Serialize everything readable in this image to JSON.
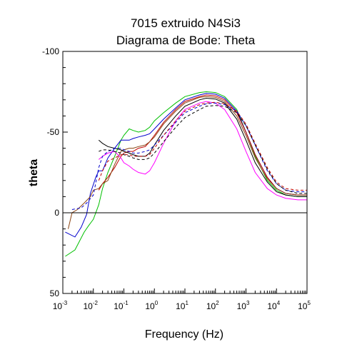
{
  "chart_data": {
    "type": "line",
    "title": "7015 extruido N4Si3",
    "subtitle": "Diagrama de Bode: Theta",
    "xlabel": "Frequency (Hz)",
    "ylabel": "theta",
    "x_scale": "log",
    "xlim": [
      0.001,
      100000
    ],
    "ylim": [
      50,
      -100
    ],
    "y_inverted": true,
    "x_ticks": [
      {
        "base": "10",
        "exp": "-3",
        "value": 0.001
      },
      {
        "base": "10",
        "exp": "-2",
        "value": 0.01
      },
      {
        "base": "10",
        "exp": "-1",
        "value": 0.1
      },
      {
        "base": "10",
        "exp": "0",
        "value": 1
      },
      {
        "base": "10",
        "exp": "1",
        "value": 10
      },
      {
        "base": "10",
        "exp": "2",
        "value": 100
      },
      {
        "base": "10",
        "exp": "3",
        "value": 1000
      },
      {
        "base": "10",
        "exp": "4",
        "value": 10000
      },
      {
        "base": "10",
        "exp": "5",
        "value": 100000
      }
    ],
    "y_ticks": [
      {
        "label": "-100",
        "value": -100
      },
      {
        "label": "-50",
        "value": -50
      },
      {
        "label": "0",
        "value": 0
      },
      {
        "label": "50",
        "value": 50
      }
    ],
    "reference_line": {
      "y": 0,
      "color": "#000000"
    },
    "grid": false,
    "legend": "none",
    "series": [
      {
        "color": "#00c000",
        "dash": "solid",
        "points": [
          [
            0.0012,
            27
          ],
          [
            0.0025,
            23
          ],
          [
            0.005,
            12
          ],
          [
            0.007,
            8
          ],
          [
            0.01,
            4
          ],
          [
            0.015,
            -5
          ],
          [
            0.02,
            -15
          ],
          [
            0.03,
            -25
          ],
          [
            0.05,
            -35
          ],
          [
            0.08,
            -45
          ],
          [
            0.1,
            -48
          ],
          [
            0.15,
            -52
          ],
          [
            0.2,
            -51
          ],
          [
            0.3,
            -50
          ],
          [
            0.5,
            -51
          ],
          [
            0.7,
            -53
          ],
          [
            1,
            -57
          ],
          [
            2,
            -62
          ],
          [
            5,
            -68
          ],
          [
            10,
            -72
          ],
          [
            30,
            -74.5
          ],
          [
            50,
            -75
          ],
          [
            100,
            -74.5
          ],
          [
            200,
            -72
          ],
          [
            500,
            -64
          ],
          [
            1000,
            -50
          ],
          [
            2000,
            -35
          ],
          [
            5000,
            -20
          ],
          [
            10000,
            -14
          ],
          [
            20000,
            -11
          ],
          [
            50000,
            -10
          ],
          [
            100000,
            -10
          ]
        ]
      },
      {
        "color": "#0000cc",
        "dash": "solid",
        "points": [
          [
            0.0012,
            12
          ],
          [
            0.0025,
            15
          ],
          [
            0.004,
            9
          ],
          [
            0.006,
            1
          ],
          [
            0.008,
            -12
          ],
          [
            0.012,
            -22
          ],
          [
            0.015,
            -26
          ],
          [
            0.02,
            -26
          ],
          [
            0.03,
            -34
          ],
          [
            0.05,
            -40
          ],
          [
            0.08,
            -45
          ],
          [
            0.1,
            -45
          ],
          [
            0.15,
            -45
          ],
          [
            0.2,
            -46
          ],
          [
            0.3,
            -47
          ],
          [
            0.5,
            -48
          ],
          [
            0.7,
            -49
          ],
          [
            1,
            -52
          ],
          [
            2,
            -58
          ],
          [
            5,
            -65
          ],
          [
            10,
            -70
          ],
          [
            30,
            -73
          ],
          [
            50,
            -74
          ],
          [
            100,
            -73.5
          ],
          [
            200,
            -71
          ],
          [
            500,
            -63
          ],
          [
            1000,
            -50
          ],
          [
            2000,
            -36
          ],
          [
            5000,
            -22
          ],
          [
            10000,
            -15
          ],
          [
            20000,
            -12
          ],
          [
            50000,
            -11
          ],
          [
            100000,
            -11
          ]
        ]
      },
      {
        "color": "#c00000",
        "dash": "solid",
        "points": [
          [
            0.015,
            -14
          ],
          [
            0.02,
            -18
          ],
          [
            0.03,
            -22
          ],
          [
            0.05,
            -28
          ],
          [
            0.08,
            -35
          ],
          [
            0.1,
            -37
          ],
          [
            0.15,
            -38
          ],
          [
            0.2,
            -38
          ],
          [
            0.3,
            -40
          ],
          [
            0.5,
            -41
          ],
          [
            0.7,
            -44
          ],
          [
            1,
            -48
          ],
          [
            2,
            -56
          ],
          [
            5,
            -64
          ],
          [
            10,
            -69
          ],
          [
            30,
            -72
          ],
          [
            50,
            -73
          ],
          [
            100,
            -72.5
          ],
          [
            200,
            -70
          ],
          [
            500,
            -62
          ],
          [
            1000,
            -50
          ],
          [
            2000,
            -36
          ],
          [
            5000,
            -22
          ],
          [
            10000,
            -15
          ],
          [
            20000,
            -12
          ],
          [
            50000,
            -11
          ],
          [
            100000,
            -11
          ]
        ]
      },
      {
        "color": "#8b4513",
        "dash": "solid",
        "points": [
          [
            0.0015,
            10
          ],
          [
            0.002,
            0
          ],
          [
            0.003,
            -2
          ],
          [
            0.005,
            -6
          ],
          [
            0.008,
            -10
          ],
          [
            0.01,
            -14
          ],
          [
            0.015,
            -15
          ],
          [
            0.02,
            -18
          ],
          [
            0.03,
            -20
          ],
          [
            0.05,
            -30
          ],
          [
            0.08,
            -38
          ],
          [
            0.1,
            -39
          ],
          [
            0.15,
            -40
          ],
          [
            0.2,
            -40
          ],
          [
            0.3,
            -41
          ],
          [
            0.5,
            -42
          ],
          [
            0.7,
            -44
          ],
          [
            1,
            -47
          ],
          [
            2,
            -55
          ],
          [
            5,
            -63
          ],
          [
            10,
            -68
          ],
          [
            30,
            -71.5
          ],
          [
            50,
            -72
          ],
          [
            100,
            -71.5
          ],
          [
            200,
            -69
          ],
          [
            500,
            -60
          ],
          [
            1000,
            -48
          ],
          [
            2000,
            -34
          ],
          [
            5000,
            -21
          ],
          [
            10000,
            -15
          ],
          [
            20000,
            -12
          ],
          [
            50000,
            -11
          ],
          [
            100000,
            -11
          ]
        ]
      },
      {
        "color": "#ff00ff",
        "dash": "solid",
        "points": [
          [
            0.015,
            -33
          ],
          [
            0.02,
            -35
          ],
          [
            0.03,
            -37
          ],
          [
            0.05,
            -38
          ],
          [
            0.08,
            -34
          ],
          [
            0.1,
            -31
          ],
          [
            0.15,
            -29
          ],
          [
            0.2,
            -27
          ],
          [
            0.3,
            -25
          ],
          [
            0.5,
            -24
          ],
          [
            0.7,
            -26
          ],
          [
            1,
            -31
          ],
          [
            2,
            -43
          ],
          [
            5,
            -57
          ],
          [
            10,
            -64
          ],
          [
            30,
            -68
          ],
          [
            50,
            -69
          ],
          [
            100,
            -68
          ],
          [
            200,
            -64
          ],
          [
            500,
            -52
          ],
          [
            1000,
            -38
          ],
          [
            2000,
            -25
          ],
          [
            5000,
            -15
          ],
          [
            10000,
            -11
          ],
          [
            20000,
            -9
          ],
          [
            50000,
            -8
          ],
          [
            100000,
            -8
          ]
        ]
      },
      {
        "color": "#000000",
        "dash": "solid",
        "points": [
          [
            0.015,
            -45
          ],
          [
            0.02,
            -43
          ],
          [
            0.03,
            -41
          ],
          [
            0.05,
            -40
          ],
          [
            0.08,
            -39
          ],
          [
            0.1,
            -38
          ],
          [
            0.15,
            -37
          ],
          [
            0.2,
            -36
          ],
          [
            0.3,
            -35
          ],
          [
            0.5,
            -35
          ],
          [
            0.7,
            -37
          ],
          [
            1,
            -42
          ],
          [
            2,
            -51
          ],
          [
            5,
            -60
          ],
          [
            10,
            -66
          ],
          [
            30,
            -70
          ],
          [
            50,
            -71
          ],
          [
            100,
            -70.5
          ],
          [
            200,
            -68
          ],
          [
            500,
            -58
          ],
          [
            1000,
            -45
          ],
          [
            2000,
            -31
          ],
          [
            5000,
            -19
          ],
          [
            10000,
            -13
          ],
          [
            20000,
            -11
          ],
          [
            50000,
            -10
          ],
          [
            100000,
            -10
          ]
        ]
      },
      {
        "color": "#0000cc",
        "dash": "dashed",
        "points": [
          [
            0.002,
            -2
          ],
          [
            0.004,
            -3
          ],
          [
            0.006,
            -6
          ],
          [
            0.01,
            -11
          ],
          [
            0.015,
            -28
          ],
          [
            0.02,
            -35
          ],
          [
            0.03,
            -38
          ],
          [
            0.05,
            -40
          ],
          [
            0.08,
            -40
          ],
          [
            0.1,
            -39
          ],
          [
            0.15,
            -38
          ],
          [
            0.2,
            -37
          ],
          [
            0.3,
            -37
          ],
          [
            0.5,
            -38
          ],
          [
            0.7,
            -39
          ],
          [
            1,
            -42
          ],
          [
            2,
            -48
          ],
          [
            5,
            -56
          ],
          [
            10,
            -62
          ],
          [
            30,
            -66
          ],
          [
            50,
            -67.5
          ],
          [
            100,
            -68
          ],
          [
            200,
            -67
          ],
          [
            500,
            -63
          ],
          [
            1000,
            -54
          ],
          [
            2000,
            -42
          ],
          [
            5000,
            -26
          ],
          [
            10000,
            -18
          ],
          [
            20000,
            -14
          ],
          [
            50000,
            -13
          ],
          [
            100000,
            -13
          ]
        ]
      },
      {
        "color": "#c00000",
        "dash": "dashed",
        "points": [
          [
            0.015,
            -20
          ],
          [
            0.02,
            -26
          ],
          [
            0.03,
            -32
          ],
          [
            0.05,
            -34
          ],
          [
            0.08,
            -36
          ],
          [
            0.1,
            -36
          ],
          [
            0.15,
            -36
          ],
          [
            0.2,
            -35
          ],
          [
            0.3,
            -35
          ],
          [
            0.5,
            -35
          ],
          [
            0.7,
            -36
          ],
          [
            1,
            -40
          ],
          [
            2,
            -48
          ],
          [
            5,
            -57
          ],
          [
            10,
            -63
          ],
          [
            30,
            -67
          ],
          [
            50,
            -68
          ],
          [
            100,
            -68.5
          ],
          [
            200,
            -67.5
          ],
          [
            500,
            -63
          ],
          [
            1000,
            -55
          ],
          [
            2000,
            -43
          ],
          [
            5000,
            -28
          ],
          [
            10000,
            -19
          ],
          [
            20000,
            -15
          ],
          [
            50000,
            -14
          ],
          [
            100000,
            -14
          ]
        ]
      },
      {
        "color": "#000000",
        "dash": "dashed",
        "points": [
          [
            0.015,
            -38
          ],
          [
            0.02,
            -39
          ],
          [
            0.03,
            -39
          ],
          [
            0.05,
            -38
          ],
          [
            0.08,
            -37
          ],
          [
            0.1,
            -36
          ],
          [
            0.15,
            -35
          ],
          [
            0.2,
            -34
          ],
          [
            0.3,
            -33
          ],
          [
            0.5,
            -33
          ],
          [
            0.7,
            -34
          ],
          [
            1,
            -37
          ],
          [
            2,
            -44
          ],
          [
            5,
            -53
          ],
          [
            10,
            -59
          ],
          [
            30,
            -64
          ],
          [
            50,
            -66
          ],
          [
            100,
            -66.5
          ],
          [
            200,
            -66
          ],
          [
            500,
            -62
          ],
          [
            1000,
            -54
          ],
          [
            2000,
            -42
          ],
          [
            5000,
            -27
          ],
          [
            10000,
            -18
          ],
          [
            20000,
            -14
          ],
          [
            50000,
            -12
          ],
          [
            100000,
            -12
          ]
        ]
      }
    ]
  }
}
